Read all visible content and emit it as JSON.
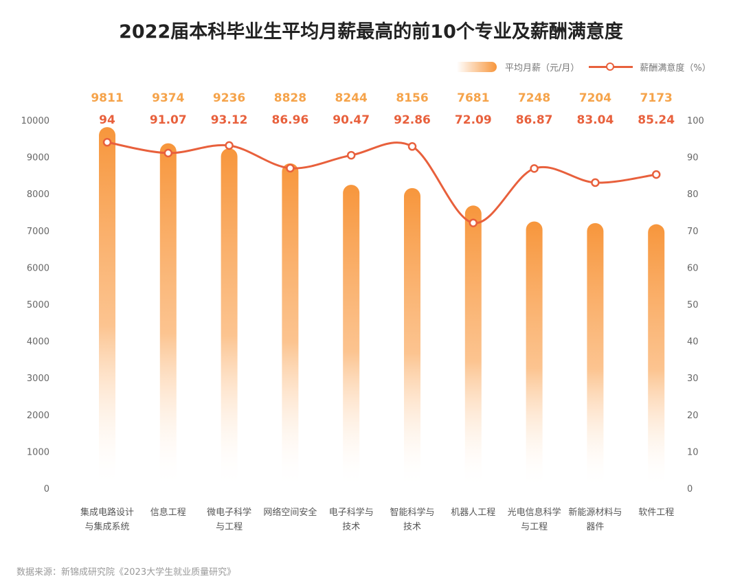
{
  "chart_data": {
    "type": "bar",
    "title": "2022届本科毕业生平均月薪最高的前10个专业及薪酬满意度",
    "categories": [
      [
        "集成电路设计",
        "与集成系统"
      ],
      [
        "信息工程"
      ],
      [
        "微电子科学",
        "与工程"
      ],
      [
        "网络空间安全"
      ],
      [
        "电子科学与",
        "技术"
      ],
      [
        "智能科学与",
        "技术"
      ],
      [
        "机器人工程"
      ],
      [
        "光电信息科学",
        "与工程"
      ],
      [
        "新能源材料与",
        "器件"
      ],
      [
        "软件工程"
      ]
    ],
    "series": [
      {
        "name": "平均月薪（元/月）",
        "type": "bar",
        "axis": "left",
        "color": "#f7963c",
        "values": [
          9811,
          9374,
          9236,
          8828,
          8244,
          8156,
          7681,
          7248,
          7204,
          7173
        ]
      },
      {
        "name": "薪酬满意度（%）",
        "type": "line",
        "axis": "right",
        "color": "#e8603c",
        "values": [
          94,
          91.07,
          93.12,
          86.96,
          90.47,
          92.86,
          72.09,
          86.87,
          83.04,
          85.24
        ]
      }
    ],
    "ylim_left": [
      0,
      10000
    ],
    "yticks_left": [
      "0",
      "1000",
      "2000",
      "3000",
      "4000",
      "5000",
      "6000",
      "7000",
      "8000",
      "9000",
      "10000"
    ],
    "ylim_right": [
      0,
      100
    ],
    "yticks_right": [
      "0",
      "10",
      "20",
      "30",
      "40",
      "50",
      "60",
      "70",
      "80",
      "90",
      "100"
    ],
    "salary_labels": [
      "9811",
      "9374",
      "9236",
      "8828",
      "8244",
      "8156",
      "7681",
      "7248",
      "7204",
      "7173"
    ],
    "satisfaction_labels": [
      "94",
      "91.07",
      "93.12",
      "86.96",
      "90.47",
      "92.86",
      "72.09",
      "86.87",
      "83.04",
      "85.24"
    ],
    "legend_position": "top-right",
    "grid": false
  },
  "legend": {
    "bar": "平均月薪（元/月）",
    "line": "薪酬满意度（%）"
  },
  "source": "数据来源：新锦成研究院《2023大学生就业质量研究》"
}
